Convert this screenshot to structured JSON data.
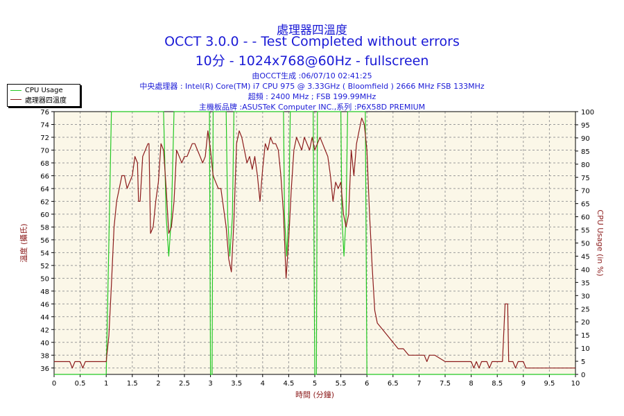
{
  "chart_data": {
    "type": "line",
    "title_line1": "處理器四溫度",
    "title_line2": "OCCT 3.0.0 -  - Test Completed without errors",
    "title_line3": "10分 - 1024x768@60Hz - fullscreen",
    "info_lines": [
      "由OCCT生成 :06/07/10 02:41:25",
      "中央處理器 : Intel(R) Core(TM) i7 CPU 975 @ 3.33GHz ( Bloomfield ) 2666 MHz FSB 133MHz",
      "超頻 : 2400 MHz ; FSB 199.99MHz",
      "主機板品牌 :ASUSTeK Computer INC.,系列 :P6X58D PREMIUM"
    ],
    "xlabel": "時間 (分鐘)",
    "ylabel_left": "溫度 (攝氏)",
    "ylabel_right": "CPU Usage (in %)",
    "xlim": [
      0,
      10
    ],
    "ylim_left": [
      35,
      76
    ],
    "ylim_right": [
      0,
      100
    ],
    "x_ticks": [
      "0",
      "0.5",
      "1",
      "1.5",
      "2",
      "2.5",
      "3",
      "3.5",
      "4",
      "4.5",
      "5",
      "5.5",
      "6",
      "6.5",
      "7",
      "7.5",
      "8",
      "8.5",
      "9",
      "9.5",
      "10"
    ],
    "y_left_ticks": [
      "36",
      "38",
      "40",
      "42",
      "44",
      "46",
      "48",
      "50",
      "52",
      "54",
      "56",
      "58",
      "60",
      "62",
      "64",
      "66",
      "68",
      "70",
      "72",
      "74",
      "76"
    ],
    "y_right_ticks": [
      "0",
      "5",
      "10",
      "15",
      "20",
      "25",
      "30",
      "35",
      "40",
      "45",
      "50",
      "55",
      "60",
      "65",
      "70",
      "75",
      "80",
      "85",
      "90",
      "95",
      "100"
    ],
    "grid": true,
    "legend_position": "top-left",
    "series": [
      {
        "name": "CPU Usage",
        "axis": "right",
        "color": "#22c822",
        "points": [
          [
            0,
            0
          ],
          [
            1.0,
            0
          ],
          [
            1.05,
            50
          ],
          [
            1.1,
            100
          ],
          [
            1.2,
            100
          ],
          [
            2.1,
            100
          ],
          [
            2.15,
            60
          ],
          [
            2.2,
            45
          ],
          [
            2.25,
            60
          ],
          [
            2.3,
            100
          ],
          [
            2.98,
            100
          ],
          [
            3.0,
            0
          ],
          [
            3.03,
            0
          ],
          [
            3.05,
            100
          ],
          [
            3.3,
            100
          ],
          [
            3.33,
            60
          ],
          [
            3.37,
            45
          ],
          [
            3.42,
            60
          ],
          [
            3.45,
            100
          ],
          [
            4.4,
            100
          ],
          [
            4.42,
            60
          ],
          [
            4.46,
            45
          ],
          [
            4.5,
            60
          ],
          [
            4.53,
            100
          ],
          [
            4.97,
            100
          ],
          [
            5.0,
            0
          ],
          [
            5.03,
            0
          ],
          [
            5.05,
            100
          ],
          [
            5.5,
            100
          ],
          [
            5.52,
            60
          ],
          [
            5.56,
            45
          ],
          [
            5.6,
            60
          ],
          [
            5.63,
            100
          ],
          [
            5.97,
            100
          ],
          [
            6.0,
            0
          ],
          [
            10,
            0
          ]
        ]
      },
      {
        "name": "處理器四溫度",
        "axis": "left",
        "color": "#8b1a1a",
        "points": [
          [
            0,
            37
          ],
          [
            0.3,
            37
          ],
          [
            0.35,
            36
          ],
          [
            0.4,
            37
          ],
          [
            0.5,
            37
          ],
          [
            0.55,
            36
          ],
          [
            0.6,
            37
          ],
          [
            1.0,
            37
          ],
          [
            1.05,
            41
          ],
          [
            1.1,
            49
          ],
          [
            1.15,
            58
          ],
          [
            1.2,
            62
          ],
          [
            1.25,
            64
          ],
          [
            1.3,
            66
          ],
          [
            1.35,
            66
          ],
          [
            1.4,
            64
          ],
          [
            1.45,
            65
          ],
          [
            1.5,
            66
          ],
          [
            1.55,
            69
          ],
          [
            1.6,
            68
          ],
          [
            1.62,
            62
          ],
          [
            1.65,
            62
          ],
          [
            1.7,
            69
          ],
          [
            1.75,
            70
          ],
          [
            1.8,
            71
          ],
          [
            1.82,
            71
          ],
          [
            1.85,
            57
          ],
          [
            1.9,
            58
          ],
          [
            1.95,
            62
          ],
          [
            2.0,
            65
          ],
          [
            2.05,
            71
          ],
          [
            2.1,
            70
          ],
          [
            2.15,
            64
          ],
          [
            2.2,
            57
          ],
          [
            2.25,
            58
          ],
          [
            2.3,
            62
          ],
          [
            2.35,
            70
          ],
          [
            2.4,
            69
          ],
          [
            2.45,
            68
          ],
          [
            2.5,
            69
          ],
          [
            2.55,
            69
          ],
          [
            2.6,
            70
          ],
          [
            2.65,
            71
          ],
          [
            2.7,
            71
          ],
          [
            2.75,
            70
          ],
          [
            2.8,
            69
          ],
          [
            2.85,
            68
          ],
          [
            2.9,
            69
          ],
          [
            2.95,
            73
          ],
          [
            3.0,
            70
          ],
          [
            3.05,
            66
          ],
          [
            3.1,
            65
          ],
          [
            3.15,
            64
          ],
          [
            3.2,
            64
          ],
          [
            3.25,
            61
          ],
          [
            3.3,
            58
          ],
          [
            3.35,
            53
          ],
          [
            3.4,
            51
          ],
          [
            3.45,
            59
          ],
          [
            3.5,
            71
          ],
          [
            3.55,
            73
          ],
          [
            3.6,
            72
          ],
          [
            3.65,
            70
          ],
          [
            3.7,
            68
          ],
          [
            3.75,
            69
          ],
          [
            3.8,
            67
          ],
          [
            3.85,
            69
          ],
          [
            3.9,
            66
          ],
          [
            3.95,
            62
          ],
          [
            4.0,
            67
          ],
          [
            4.05,
            71
          ],
          [
            4.1,
            70
          ],
          [
            4.15,
            72
          ],
          [
            4.2,
            71
          ],
          [
            4.25,
            71
          ],
          [
            4.3,
            70
          ],
          [
            4.35,
            66
          ],
          [
            4.4,
            60
          ],
          [
            4.45,
            50
          ],
          [
            4.5,
            56
          ],
          [
            4.55,
            64
          ],
          [
            4.6,
            70
          ],
          [
            4.65,
            72
          ],
          [
            4.7,
            71
          ],
          [
            4.75,
            70
          ],
          [
            4.8,
            72
          ],
          [
            4.85,
            71
          ],
          [
            4.9,
            70
          ],
          [
            4.95,
            72
          ],
          [
            5.0,
            70
          ],
          [
            5.05,
            71
          ],
          [
            5.1,
            72
          ],
          [
            5.15,
            71
          ],
          [
            5.2,
            70
          ],
          [
            5.25,
            69
          ],
          [
            5.3,
            66
          ],
          [
            5.35,
            62
          ],
          [
            5.4,
            65
          ],
          [
            5.45,
            64
          ],
          [
            5.5,
            65
          ],
          [
            5.55,
            60
          ],
          [
            5.6,
            58
          ],
          [
            5.65,
            60
          ],
          [
            5.7,
            70
          ],
          [
            5.75,
            66
          ],
          [
            5.8,
            71
          ],
          [
            5.85,
            73
          ],
          [
            5.9,
            75
          ],
          [
            5.95,
            74
          ],
          [
            6.0,
            70
          ],
          [
            6.05,
            60
          ],
          [
            6.1,
            52
          ],
          [
            6.15,
            45
          ],
          [
            6.2,
            43
          ],
          [
            6.3,
            42
          ],
          [
            6.4,
            41
          ],
          [
            6.5,
            40
          ],
          [
            6.6,
            39
          ],
          [
            6.7,
            39
          ],
          [
            6.8,
            38
          ],
          [
            7.0,
            38
          ],
          [
            7.1,
            38
          ],
          [
            7.15,
            37
          ],
          [
            7.2,
            38
          ],
          [
            7.3,
            38
          ],
          [
            7.5,
            37
          ],
          [
            8.0,
            37
          ],
          [
            8.05,
            36
          ],
          [
            8.1,
            37
          ],
          [
            8.15,
            36
          ],
          [
            8.2,
            37
          ],
          [
            8.3,
            37
          ],
          [
            8.35,
            36
          ],
          [
            8.4,
            37
          ],
          [
            8.6,
            37
          ],
          [
            8.65,
            46
          ],
          [
            8.7,
            46
          ],
          [
            8.72,
            37
          ],
          [
            8.8,
            37
          ],
          [
            8.85,
            36
          ],
          [
            8.9,
            37
          ],
          [
            9.0,
            37
          ],
          [
            9.05,
            36
          ],
          [
            9.1,
            36
          ],
          [
            10,
            36
          ]
        ]
      }
    ]
  }
}
